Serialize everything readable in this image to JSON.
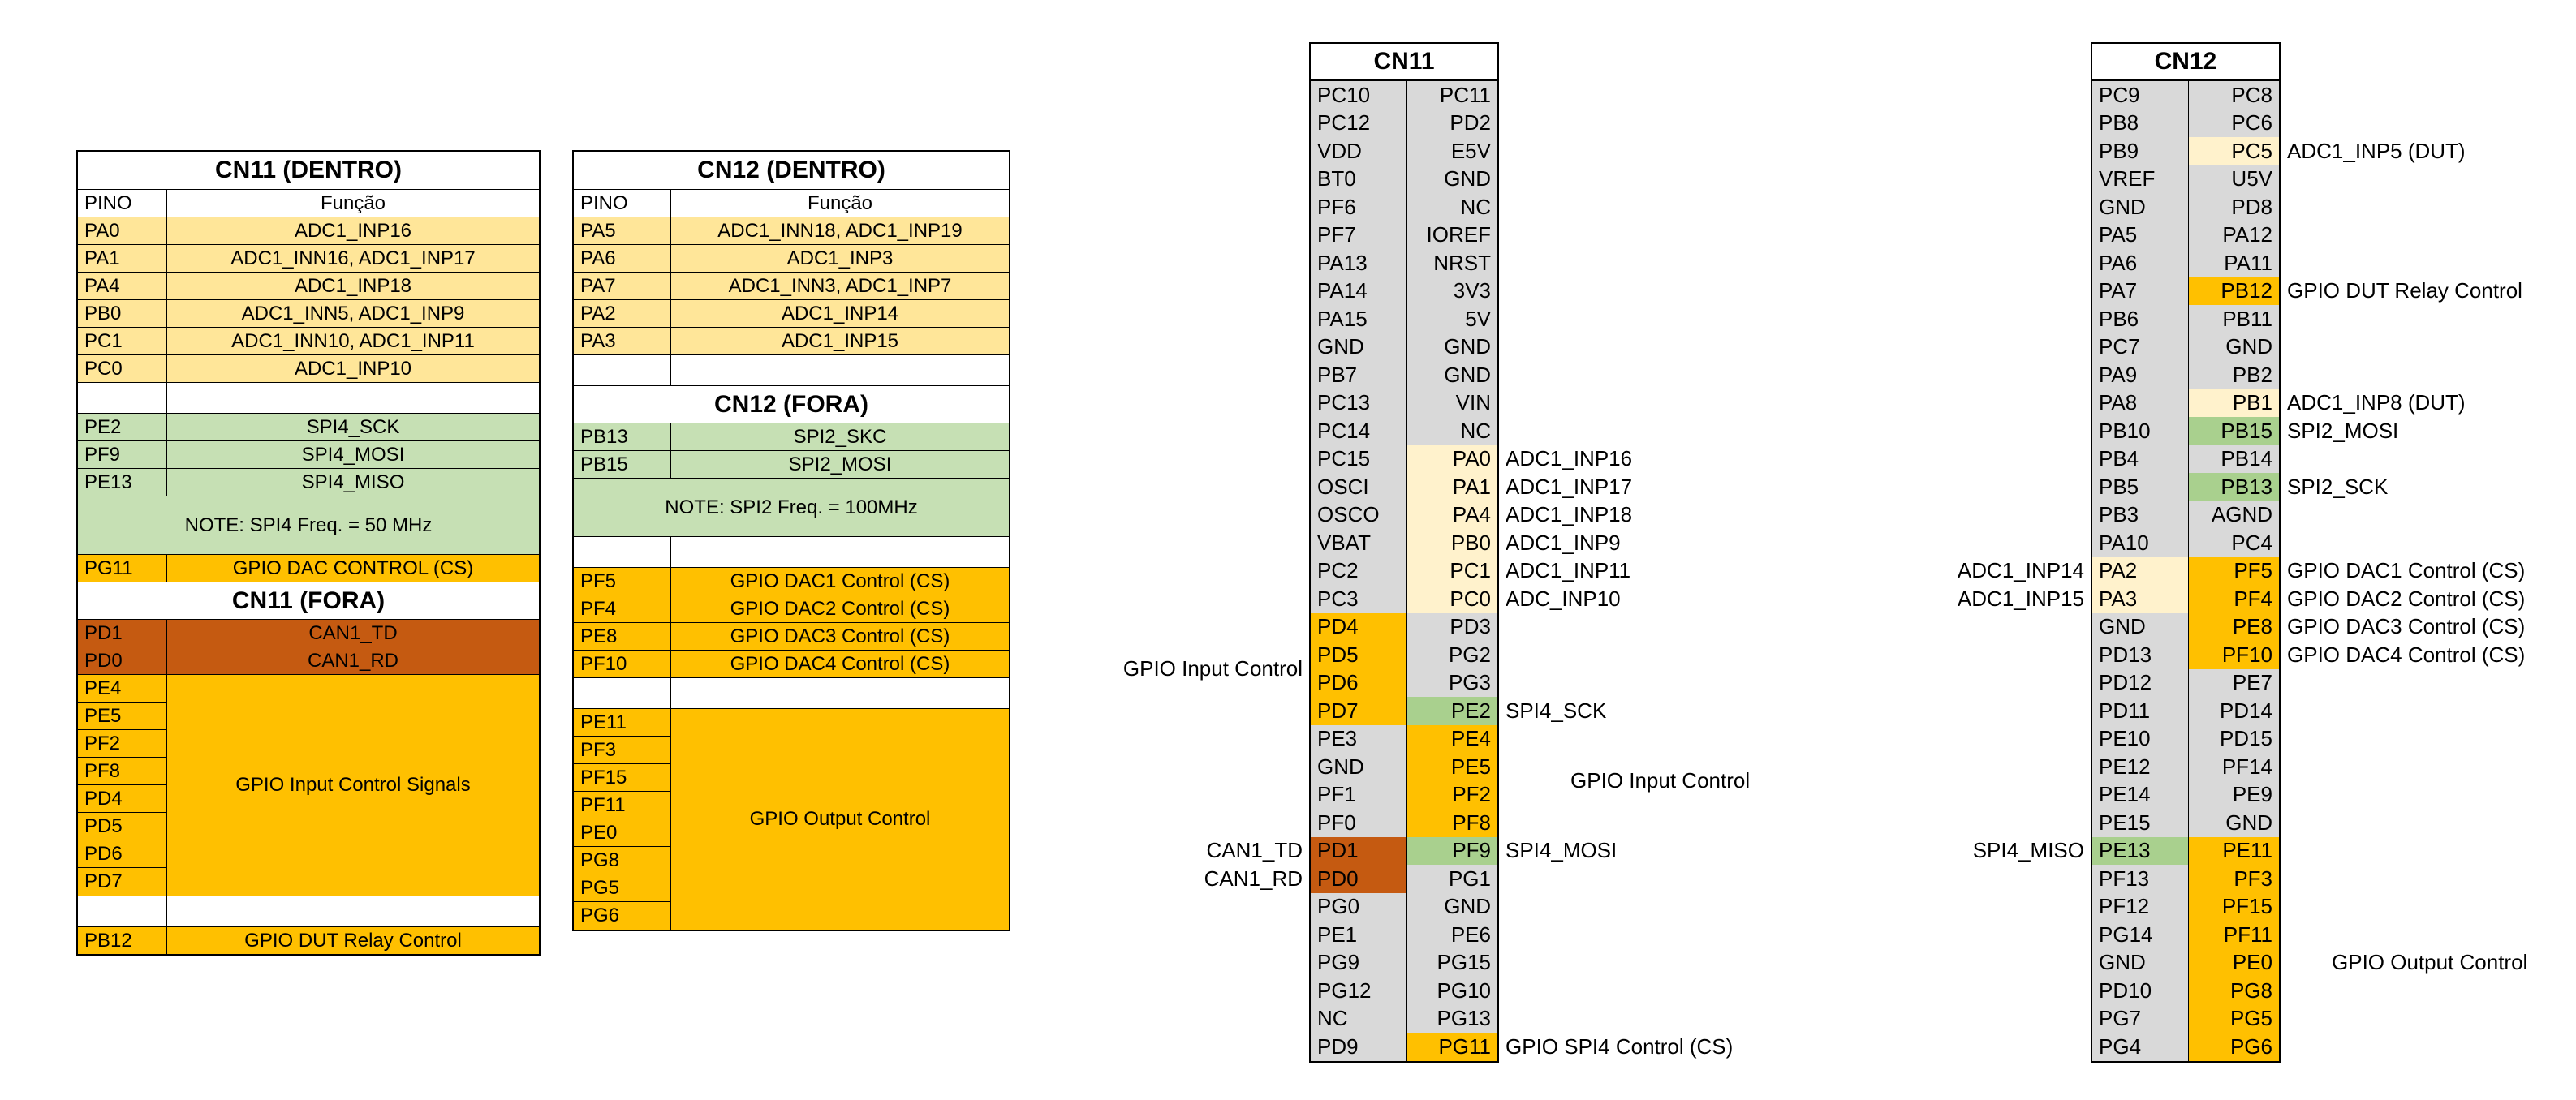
{
  "colors": {
    "gray": "#D9D9D9",
    "cream": "#FFE699",
    "pale": "#FFF2CC",
    "green_light": "#C6E0B4",
    "green": "#A9D08E",
    "orange": "#FFC000",
    "dark_orange": "#C55A11"
  },
  "left_tables": [
    {
      "rows": [
        {
          "kind": "title",
          "text": "CN11 (DENTRO)"
        },
        {
          "kind": "header",
          "pin": "PINO",
          "func": "Função"
        },
        {
          "kind": "pin",
          "pin": "PA0",
          "func": "ADC1_INP16",
          "color": "cream"
        },
        {
          "kind": "pin",
          "pin": "PA1",
          "func": "ADC1_INN16, ADC1_INP17",
          "color": "cream"
        },
        {
          "kind": "pin",
          "pin": "PA4",
          "func": "ADC1_INP18",
          "color": "cream"
        },
        {
          "kind": "pin",
          "pin": "PB0",
          "func": "ADC1_INN5, ADC1_INP9",
          "color": "cream"
        },
        {
          "kind": "pin",
          "pin": "PC1",
          "func": "ADC1_INN10, ADC1_INP11",
          "color": "cream"
        },
        {
          "kind": "pin",
          "pin": "PC0",
          "func": "ADC1_INP10",
          "color": "cream"
        },
        {
          "kind": "empty"
        },
        {
          "kind": "pin",
          "pin": "PE2",
          "func": "SPI4_SCK",
          "color": "green_light"
        },
        {
          "kind": "pin",
          "pin": "PF9",
          "func": "SPI4_MOSI",
          "color": "green_light"
        },
        {
          "kind": "pin",
          "pin": "PE13",
          "func": "SPI4_MISO",
          "color": "green_light"
        },
        {
          "kind": "note",
          "text": "NOTE: SPI4 Freq. = 50 MHz",
          "color": "green_light"
        },
        {
          "kind": "pin",
          "pin": "PG11",
          "func": "GPIO DAC CONTROL (CS)",
          "color": "orange"
        },
        {
          "kind": "title",
          "text": "CN11 (FORA)"
        },
        {
          "kind": "pin",
          "pin": "PD1",
          "func": "CAN1_TD",
          "color": "dark_orange"
        },
        {
          "kind": "pin",
          "pin": "PD0",
          "func": "CAN1_RD",
          "color": "dark_orange"
        },
        {
          "kind": "group",
          "pins": [
            "PE4",
            "PE5",
            "PF2",
            "PF8",
            "PD4",
            "PD5",
            "PD6",
            "PD7"
          ],
          "label": "GPIO Input Control Signals",
          "color": "orange"
        },
        {
          "kind": "empty"
        },
        {
          "kind": "pin",
          "pin": "PB12",
          "func": "GPIO DUT Relay Control",
          "color": "orange"
        }
      ]
    },
    {
      "rows": [
        {
          "kind": "title",
          "text": "CN12 (DENTRO)"
        },
        {
          "kind": "header",
          "pin": "PINO",
          "func": "Função"
        },
        {
          "kind": "pin",
          "pin": "PA5",
          "func": "ADC1_INN18, ADC1_INP19",
          "color": "cream"
        },
        {
          "kind": "pin",
          "pin": "PA6",
          "func": "ADC1_INP3",
          "color": "cream"
        },
        {
          "kind": "pin",
          "pin": "PA7",
          "func": "ADC1_INN3, ADC1_INP7",
          "color": "cream"
        },
        {
          "kind": "pin",
          "pin": "PA2",
          "func": "ADC1_INP14",
          "color": "cream"
        },
        {
          "kind": "pin",
          "pin": "PA3",
          "func": "ADC1_INP15",
          "color": "cream"
        },
        {
          "kind": "empty"
        },
        {
          "kind": "title",
          "text": "CN12 (FORA)"
        },
        {
          "kind": "pin",
          "pin": "PB13",
          "func": "SPI2_SKC",
          "color": "green_light"
        },
        {
          "kind": "pin",
          "pin": "PB15",
          "func": "SPI2_MOSI",
          "color": "green_light"
        },
        {
          "kind": "note",
          "text": "NOTE: SPI2 Freq. = 100MHz",
          "color": "green_light"
        },
        {
          "kind": "empty"
        },
        {
          "kind": "pin",
          "pin": "PF5",
          "func": "GPIO DAC1 Control (CS)",
          "color": "orange"
        },
        {
          "kind": "pin",
          "pin": "PF4",
          "func": "GPIO DAC2 Control (CS)",
          "color": "orange"
        },
        {
          "kind": "pin",
          "pin": "PE8",
          "func": "GPIO DAC3 Control (CS)",
          "color": "orange"
        },
        {
          "kind": "pin",
          "pin": "PF10",
          "func": "GPIO DAC4 Control (CS)",
          "color": "orange"
        },
        {
          "kind": "empty"
        },
        {
          "kind": "group",
          "pins": [
            "PE11",
            "PF3",
            "PF15",
            "PF11",
            "PE0",
            "PG8",
            "PG5",
            "PG6"
          ],
          "label": "GPIO Output Control",
          "color": "orange"
        }
      ]
    }
  ],
  "pinouts": [
    {
      "title": "CN11",
      "rows": [
        {
          "l": "PC10",
          "r": "PC11"
        },
        {
          "l": "PC12",
          "r": "PD2"
        },
        {
          "l": "VDD",
          "r": "E5V"
        },
        {
          "l": "BT0",
          "r": "GND"
        },
        {
          "l": "PF6",
          "r": "NC"
        },
        {
          "l": "PF7",
          "r": "IOREF"
        },
        {
          "l": "PA13",
          "r": "NRST"
        },
        {
          "l": "PA14",
          "r": "3V3"
        },
        {
          "l": "PA15",
          "r": "5V"
        },
        {
          "l": "GND",
          "r": "GND"
        },
        {
          "l": "PB7",
          "r": "GND"
        },
        {
          "l": "PC13",
          "r": "VIN"
        },
        {
          "l": "PC14",
          "r": "NC"
        },
        {
          "l": "PC15",
          "r": "PA0",
          "rc": "pale",
          "ra": "ADC1_INP16"
        },
        {
          "l": "OSCI",
          "r": "PA1",
          "rc": "pale",
          "ra": "ADC1_INP17"
        },
        {
          "l": "OSCO",
          "r": "PA4",
          "rc": "pale",
          "ra": "ADC1_INP18"
        },
        {
          "l": "VBAT",
          "r": "PB0",
          "rc": "pale",
          "ra": "ADC1_INP9"
        },
        {
          "l": "PC2",
          "r": "PC1",
          "rc": "pale",
          "ra": "ADC1_INP11"
        },
        {
          "l": "PC3",
          "r": "PC0",
          "rc": "pale",
          "ra": "ADC_INP10"
        },
        {
          "l": "PD4",
          "lc": "orange",
          "r": "PD3"
        },
        {
          "l": "PD5",
          "lc": "orange",
          "r": "PG2"
        },
        {
          "l": "PD6",
          "lc": "orange",
          "r": "PG3"
        },
        {
          "l": "PD7",
          "lc": "orange",
          "r": "PE2",
          "rc": "green",
          "ra": "SPI4_SCK"
        },
        {
          "l": "PE3",
          "r": "PE4",
          "rc": "orange"
        },
        {
          "l": "GND",
          "r": "PE5",
          "rc": "orange"
        },
        {
          "l": "PF1",
          "r": "PF2",
          "rc": "orange"
        },
        {
          "l": "PF0",
          "r": "PF8",
          "rc": "orange"
        },
        {
          "l": "PD1",
          "lc": "dark_orange",
          "la": "CAN1_TD",
          "r": "PF9",
          "rc": "green",
          "ra": "SPI4_MOSI"
        },
        {
          "l": "PD0",
          "lc": "dark_orange",
          "la": "CAN1_RD",
          "r": "PG1"
        },
        {
          "l": "PG0",
          "r": "GND"
        },
        {
          "l": "PE1",
          "r": "PE6"
        },
        {
          "l": "PG9",
          "r": "PG15"
        },
        {
          "l": "PG12",
          "r": "PG10"
        },
        {
          "l": "NC",
          "r": "PG13"
        },
        {
          "l": "PD9",
          "r": "PG11",
          "rc": "orange",
          "ra": "GPIO SPI4 Control (CS)"
        }
      ],
      "floats": [
        {
          "side": "left",
          "start": 20,
          "end": 23,
          "text": "GPIO Input Control"
        },
        {
          "side": "right",
          "start": 24,
          "end": 27,
          "text": "GPIO Input Control",
          "indent": 80
        }
      ]
    },
    {
      "title": "CN12",
      "rows": [
        {
          "l": "PC9",
          "r": "PC8"
        },
        {
          "l": "PB8",
          "r": "PC6"
        },
        {
          "l": "PB9",
          "r": "PC5",
          "rc": "pale",
          "ra": "ADC1_INP5 (DUT)"
        },
        {
          "l": "VREF",
          "r": "U5V"
        },
        {
          "l": "GND",
          "r": "PD8"
        },
        {
          "l": "PA5",
          "r": "PA12"
        },
        {
          "l": "PA6",
          "r": "PA11"
        },
        {
          "l": "PA7",
          "r": "PB12",
          "rc": "orange",
          "ra": "GPIO DUT Relay Control"
        },
        {
          "l": "PB6",
          "r": "PB11"
        },
        {
          "l": "PC7",
          "r": "GND"
        },
        {
          "l": "PA9",
          "r": "PB2"
        },
        {
          "l": "PA8",
          "r": "PB1",
          "rc": "pale",
          "ra": "ADC1_INP8 (DUT)"
        },
        {
          "l": "PB10",
          "r": "PB15",
          "rc": "green",
          "ra": "SPI2_MOSI"
        },
        {
          "l": "PB4",
          "r": "PB14"
        },
        {
          "l": "PB5",
          "r": "PB13",
          "rc": "green",
          "ra": "SPI2_SCK"
        },
        {
          "l": "PB3",
          "r": "AGND"
        },
        {
          "l": "PA10",
          "r": "PC4"
        },
        {
          "l": "PA2",
          "lc": "pale",
          "la": "ADC1_INP14",
          "r": "PF5",
          "rc": "orange",
          "ra": "GPIO DAC1 Control (CS)"
        },
        {
          "l": "PA3",
          "lc": "pale",
          "la": "ADC1_INP15",
          "r": "PF4",
          "rc": "orange",
          "ra": "GPIO DAC2 Control (CS)"
        },
        {
          "l": "GND",
          "r": "PE8",
          "rc": "orange",
          "ra": "GPIO DAC3 Control (CS)"
        },
        {
          "l": "PD13",
          "r": "PF10",
          "rc": "orange",
          "ra": "GPIO DAC4 Control (CS)"
        },
        {
          "l": "PD12",
          "r": "PE7"
        },
        {
          "l": "PD11",
          "r": "PD14"
        },
        {
          "l": "PE10",
          "r": "PD15"
        },
        {
          "l": "PE12",
          "r": "PF14"
        },
        {
          "l": "PE14",
          "r": "PE9"
        },
        {
          "l": "PE15",
          "r": "GND"
        },
        {
          "l": "PE13",
          "lc": "green",
          "la": "SPI4_MISO",
          "r": "PE11",
          "rc": "orange"
        },
        {
          "l": "PF13",
          "r": "PF3",
          "rc": "orange"
        },
        {
          "l": "PF12",
          "r": "PF15",
          "rc": "orange"
        },
        {
          "l": "PG14",
          "r": "PF11",
          "rc": "orange"
        },
        {
          "l": "GND",
          "r": "PE0",
          "rc": "orange"
        },
        {
          "l": "PD10",
          "r": "PG8",
          "rc": "orange"
        },
        {
          "l": "PG7",
          "r": "PG5",
          "rc": "orange"
        },
        {
          "l": "PG4",
          "r": "PG6",
          "rc": "orange"
        }
      ],
      "floats": [
        {
          "side": "right",
          "start": 29,
          "end": 35,
          "text": "GPIO Output Control",
          "indent": 55
        }
      ]
    }
  ]
}
